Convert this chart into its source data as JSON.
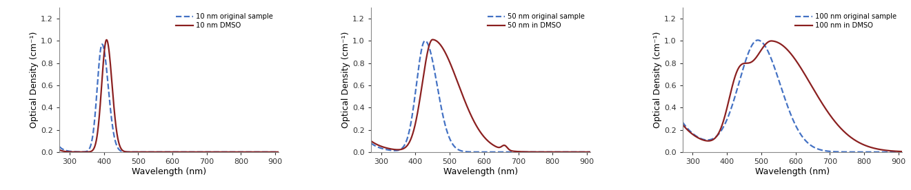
{
  "panels": [
    {
      "legend_dashed": "10 nm original sample",
      "legend_solid": "10 nm DMSO"
    },
    {
      "legend_dashed": "50 nm original sample",
      "legend_solid": "50 nm in DMSO"
    },
    {
      "legend_dashed": "100 nm original sample",
      "legend_solid": "100 nm in DMSO"
    }
  ],
  "xlim": [
    270,
    910
  ],
  "ylim": [
    0,
    1.3
  ],
  "xticks": [
    300,
    400,
    500,
    600,
    700,
    800,
    900
  ],
  "yticks": [
    0,
    0.2,
    0.4,
    0.6,
    0.8,
    1.0,
    1.2
  ],
  "xlabel": "Wavelength (nm)",
  "ylabel": "Optical Density (cm⁻¹)",
  "dashed_color": "#4472C4",
  "solid_color": "#8B2020",
  "linewidth": 1.6,
  "figsize": [
    13.21,
    2.76
  ],
  "dpi": 100
}
